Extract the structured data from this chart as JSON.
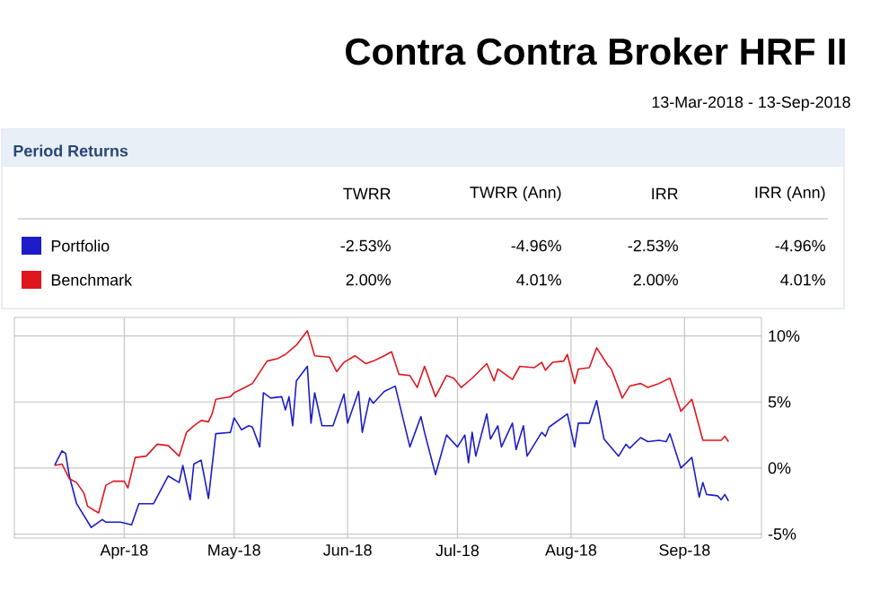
{
  "chart_data": {
    "type": "line",
    "title": "Contra Contra Broker HRF II",
    "subtitle": "13-Mar-2018 - 13-Sep-2018",
    "annotations": [
      "Period Returns",
      "TWRR",
      "TWRR (Ann)",
      "IRR",
      "IRR (Ann)",
      "-2.53%",
      "-4.96%",
      "-2.53%",
      "-4.96%",
      "2.00%",
      "4.01%",
      "2.00%",
      "4.01%"
    ],
    "legend": "top",
    "grid": true,
    "xlim": [
      "2018-03-02",
      "2018-09-22"
    ],
    "xticks": [
      {
        "value": "2018-04-01",
        "label": "Apr-18"
      },
      {
        "value": "2018-05-01",
        "label": "May-18"
      },
      {
        "value": "2018-06-01",
        "label": "Jun-18"
      },
      {
        "value": "2018-07-01",
        "label": "Jul-18"
      },
      {
        "value": "2018-08-01",
        "label": "Aug-18"
      },
      {
        "value": "2018-09-01",
        "label": "Sep-18"
      }
    ],
    "ylim": [
      -5.3,
      11.4
    ],
    "yticks": [
      {
        "value": -5,
        "label": "-5%"
      },
      {
        "value": 0,
        "label": "0%"
      },
      {
        "value": 5,
        "label": "5%"
      },
      {
        "value": 10,
        "label": "10%"
      }
    ],
    "series": [
      {
        "name": "Portfolio",
        "color": "#1c1cc8",
        "x": [
          "2018-03-13",
          "2018-03-15",
          "2018-03-16",
          "2018-03-17",
          "2018-03-19",
          "2018-03-23",
          "2018-03-26",
          "2018-03-27",
          "2018-03-31",
          "2018-04-03",
          "2018-04-05",
          "2018-04-09",
          "2018-04-13",
          "2018-04-16",
          "2018-04-17",
          "2018-04-19",
          "2018-04-20",
          "2018-04-22",
          "2018-04-24",
          "2018-04-26",
          "2018-04-30",
          "2018-05-01",
          "2018-05-03",
          "2018-05-05",
          "2018-05-06",
          "2018-05-08",
          "2018-05-09",
          "2018-05-11",
          "2018-05-14",
          "2018-05-15",
          "2018-05-16",
          "2018-05-17",
          "2018-05-18",
          "2018-05-21",
          "2018-05-22",
          "2018-05-23",
          "2018-05-25",
          "2018-05-28",
          "2018-05-31",
          "2018-06-01",
          "2018-06-04",
          "2018-06-05",
          "2018-06-07",
          "2018-06-08",
          "2018-06-11",
          "2018-06-14",
          "2018-06-18",
          "2018-06-21",
          "2018-06-22",
          "2018-06-25",
          "2018-06-28",
          "2018-07-01",
          "2018-07-03",
          "2018-07-04",
          "2018-07-05",
          "2018-07-06",
          "2018-07-09",
          "2018-07-10",
          "2018-07-12",
          "2018-07-13",
          "2018-07-16",
          "2018-07-17",
          "2018-07-19",
          "2018-07-20",
          "2018-07-24",
          "2018-07-25",
          "2018-07-26",
          "2018-07-31",
          "2018-08-02",
          "2018-08-03",
          "2018-08-06",
          "2018-08-08",
          "2018-08-10",
          "2018-08-14",
          "2018-08-16",
          "2018-08-17",
          "2018-08-20",
          "2018-08-22",
          "2018-08-25",
          "2018-08-27",
          "2018-08-28",
          "2018-08-31",
          "2018-09-03",
          "2018-09-05",
          "2018-09-06",
          "2018-09-07",
          "2018-09-10",
          "2018-09-11",
          "2018-09-12",
          "2018-09-13"
        ],
        "values": [
          0.2,
          1.3,
          1.1,
          -0.6,
          -2.7,
          -4.5,
          -3.9,
          -4.1,
          -4.1,
          -4.3,
          -2.7,
          -2.7,
          -0.6,
          -1.1,
          0.2,
          -2.4,
          0.3,
          0.6,
          -2.3,
          2.6,
          2.7,
          3.8,
          2.9,
          3.2,
          3.1,
          1.6,
          5.7,
          5.3,
          5.4,
          4.4,
          5.4,
          3.2,
          6.6,
          7.7,
          3.4,
          5.7,
          3.2,
          3.2,
          5.6,
          3.4,
          5.8,
          2.7,
          5.3,
          4.9,
          5.8,
          6.2,
          1.6,
          3.9,
          2.7,
          -0.5,
          2.5,
          1.6,
          2.5,
          0.4,
          2.7,
          0.9,
          4.1,
          2.2,
          3.2,
          1.6,
          3.4,
          1.4,
          3.2,
          0.9,
          2.7,
          2.4,
          3.1,
          4.1,
          1.6,
          3.4,
          3.4,
          5.1,
          2.2,
          0.9,
          1.8,
          1.5,
          2.3,
          2.0,
          2.1,
          2.0,
          2.6,
          0.0,
          0.8,
          -2.2,
          -1.1,
          -2.0,
          -2.1,
          -2.4,
          -2.0,
          -2.5
        ]
      },
      {
        "name": "Benchmark",
        "color": "#e0161e",
        "x": [
          "2018-03-13",
          "2018-03-15",
          "2018-03-17",
          "2018-03-19",
          "2018-03-21",
          "2018-03-22",
          "2018-03-25",
          "2018-03-27",
          "2018-03-29",
          "2018-04-01",
          "2018-04-02",
          "2018-04-04",
          "2018-04-07",
          "2018-04-10",
          "2018-04-13",
          "2018-04-16",
          "2018-04-18",
          "2018-04-20",
          "2018-04-22",
          "2018-04-24",
          "2018-04-25",
          "2018-04-26",
          "2018-04-30",
          "2018-05-01",
          "2018-05-04",
          "2018-05-06",
          "2018-05-10",
          "2018-05-13",
          "2018-05-15",
          "2018-05-18",
          "2018-05-21",
          "2018-05-23",
          "2018-05-27",
          "2018-05-29",
          "2018-05-31",
          "2018-06-03",
          "2018-06-06",
          "2018-06-08",
          "2018-06-11",
          "2018-06-13",
          "2018-06-15",
          "2018-06-18",
          "2018-06-20",
          "2018-06-22",
          "2018-06-25",
          "2018-06-28",
          "2018-06-30",
          "2018-07-02",
          "2018-07-05",
          "2018-07-09",
          "2018-07-11",
          "2018-07-12",
          "2018-07-16",
          "2018-07-18",
          "2018-07-22",
          "2018-07-24",
          "2018-07-25",
          "2018-07-27",
          "2018-07-30",
          "2018-07-31",
          "2018-08-02",
          "2018-08-03",
          "2018-08-06",
          "2018-08-08",
          "2018-08-11",
          "2018-08-12",
          "2018-08-15",
          "2018-08-17",
          "2018-08-20",
          "2018-08-22",
          "2018-08-25",
          "2018-08-28",
          "2018-08-31",
          "2018-09-03",
          "2018-09-06",
          "2018-09-11",
          "2018-09-12",
          "2018-09-13"
        ],
        "values": [
          0.2,
          0.3,
          -0.8,
          -1.1,
          -1.9,
          -2.9,
          -3.4,
          -1.3,
          -1.0,
          -1.0,
          -1.5,
          0.8,
          0.9,
          1.8,
          1.7,
          0.9,
          2.7,
          3.2,
          3.6,
          3.5,
          4.1,
          5.2,
          5.4,
          5.7,
          6.1,
          6.4,
          8.1,
          8.3,
          8.6,
          9.3,
          10.4,
          8.5,
          8.4,
          7.3,
          8.0,
          8.5,
          7.9,
          8.1,
          8.5,
          8.8,
          7.1,
          7.0,
          6.1,
          7.7,
          5.4,
          7.0,
          6.8,
          6.1,
          6.8,
          7.9,
          6.6,
          7.5,
          6.7,
          7.7,
          7.6,
          8.0,
          7.4,
          8.0,
          8.1,
          8.6,
          6.4,
          7.5,
          7.6,
          9.1,
          7.8,
          7.5,
          5.3,
          6.2,
          6.4,
          6.1,
          6.4,
          6.8,
          4.3,
          5.2,
          2.1,
          2.1,
          2.4,
          2.0
        ]
      }
    ]
  }
}
